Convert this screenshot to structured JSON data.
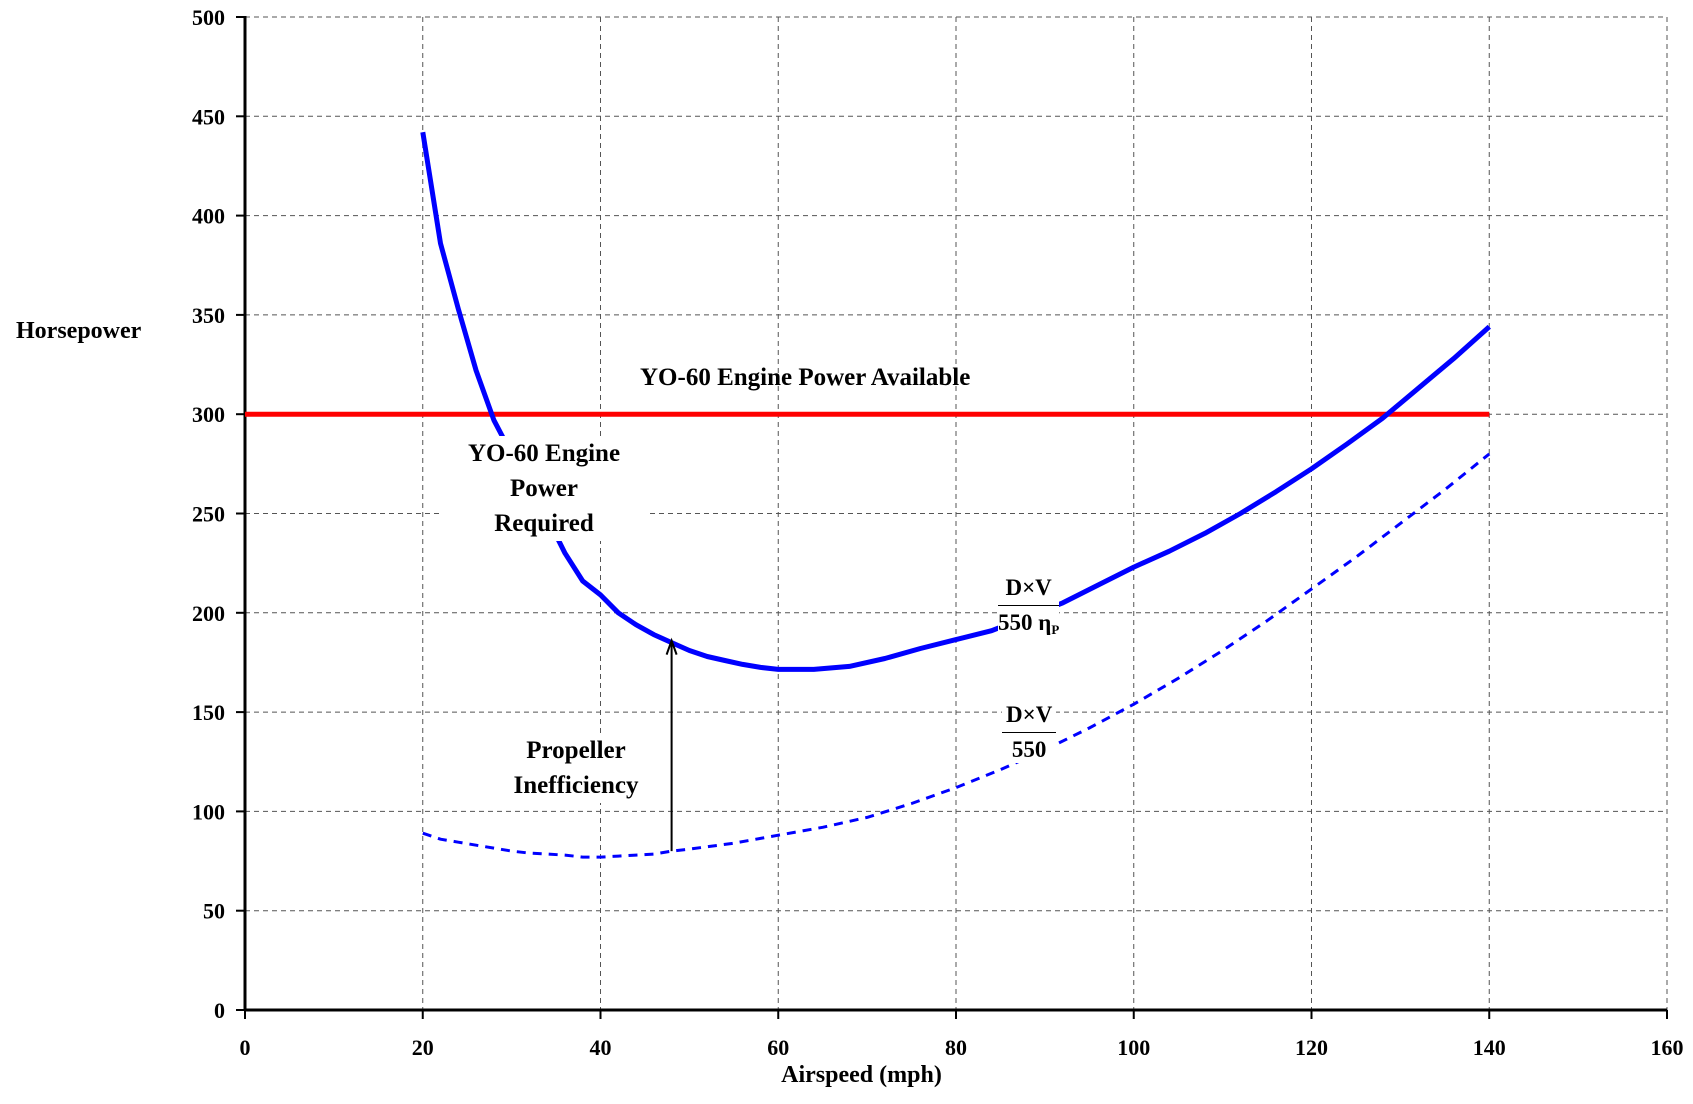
{
  "chart_data": {
    "type": "line",
    "xlabel": "Airspeed  (mph)",
    "ylabel": "Horsepower",
    "xlim": [
      0,
      160
    ],
    "ylim": [
      0,
      500
    ],
    "x_ticks": [
      0,
      20,
      40,
      60,
      80,
      100,
      120,
      140,
      160
    ],
    "y_ticks": [
      0,
      50,
      100,
      150,
      200,
      250,
      300,
      350,
      400,
      450,
      500
    ],
    "grid": true,
    "series": [
      {
        "name": "YO-60 Engine Power Available",
        "style": "solid",
        "color": "#ff0000",
        "x": [
          0,
          140
        ],
        "y": [
          300,
          300
        ]
      },
      {
        "name": "YO-60 Engine Power Required",
        "style": "solid",
        "color": "#0000ff",
        "x": [
          20,
          22,
          24,
          26,
          28,
          30,
          32,
          34,
          36,
          38,
          40,
          42,
          44,
          46,
          48,
          50,
          52,
          54,
          56,
          58,
          60,
          62,
          64,
          68,
          72,
          76,
          80,
          84,
          88,
          92,
          96,
          100,
          104,
          108,
          112,
          116,
          120,
          124,
          128,
          132,
          136,
          140
        ],
        "y": [
          442,
          386,
          353,
          322,
          297,
          280,
          262,
          248,
          230,
          216,
          209,
          200,
          194,
          189,
          185,
          181,
          178,
          176,
          174,
          172.5,
          171.5,
          171.5,
          171.5,
          173,
          177,
          182,
          186.5,
          191,
          198,
          205,
          214,
          223,
          231,
          240,
          250,
          261,
          272.5,
          285,
          298,
          313,
          328,
          344
        ]
      },
      {
        "name": "D×V / 550",
        "style": "dashed",
        "color": "#0000ff",
        "x": [
          20,
          22,
          24,
          26,
          28,
          30,
          32,
          34,
          36,
          38,
          40,
          42,
          44,
          46,
          48,
          50,
          55,
          60,
          65,
          70,
          75,
          80,
          85,
          90,
          95,
          100,
          105,
          110,
          115,
          120,
          125,
          130,
          135,
          140
        ],
        "y": [
          89,
          86,
          84.5,
          83,
          81.5,
          80,
          79,
          78.5,
          78,
          77,
          77,
          77.5,
          78,
          78.5,
          80,
          81,
          84,
          88,
          92,
          97,
          104,
          112,
          121,
          131,
          142,
          154,
          167,
          181,
          196,
          212,
          228,
          245,
          262,
          280
        ]
      }
    ],
    "annotations": {
      "available_label": "YO-60 Engine Power Available",
      "required_label_lines": [
        "YO-60 Engine",
        "Power",
        "Required"
      ],
      "propeller_label_lines": [
        "Propeller",
        "Inefficiency"
      ],
      "required_formula_num": "D×V",
      "required_formula_den": "550 η",
      "required_formula_sub": "P",
      "ideal_formula_num": "D×V",
      "ideal_formula_den": "550",
      "arrow_x": 48,
      "arrow_from_y": 80,
      "arrow_to_y": 186
    }
  }
}
